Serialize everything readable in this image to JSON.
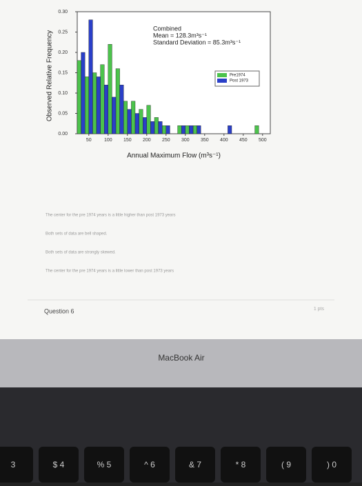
{
  "chart_data": {
    "type": "histogram",
    "annotation": [
      "Combined",
      "Mean = 128.3m³s⁻¹",
      "Standard Deviation = 85.3m³s⁻¹"
    ],
    "xlabel": "Annual Maximum Flow (m³s⁻¹)",
    "ylabel": "Observed Relative Frequency",
    "bins": [
      20,
      40,
      60,
      80,
      100,
      120,
      140,
      160,
      180,
      200,
      220,
      240,
      260,
      280,
      300,
      320,
      340,
      360,
      380,
      400,
      420,
      440,
      460,
      480,
      500,
      520
    ],
    "series": [
      {
        "name": "Pre1974",
        "color": "#4cc34c",
        "values": [
          0.18,
          0.14,
          0.15,
          0.17,
          0.22,
          0.16,
          0.08,
          0.08,
          0.06,
          0.07,
          0.04,
          0.02,
          0,
          0.02,
          0.02,
          0.02,
          0,
          0,
          0,
          0,
          0,
          0,
          0,
          0.02,
          0
        ]
      },
      {
        "name": "Post 1973",
        "color": "#2a3fc8",
        "values": [
          0.2,
          0.28,
          0.14,
          0.12,
          0.09,
          0.12,
          0.06,
          0.05,
          0.04,
          0.03,
          0.03,
          0.02,
          0,
          0.02,
          0.02,
          0.02,
          0,
          0,
          0,
          0.02,
          0,
          0,
          0,
          0,
          0
        ]
      }
    ],
    "xlim": [
      20,
      520
    ],
    "ylim": [
      0,
      0.3
    ],
    "xticks": [
      50,
      100,
      150,
      200,
      250,
      300,
      350,
      400,
      450,
      500
    ],
    "yticks": [
      {
        "value": 0,
        "label": "0.00"
      },
      {
        "value": 0.05,
        "label": "0.05"
      },
      {
        "value": 0.1,
        "label": "0.10"
      },
      {
        "value": 0.15,
        "label": "0.15"
      },
      {
        "value": 0.2,
        "label": "0.20"
      },
      {
        "value": 0.25,
        "label": "0.25"
      },
      {
        "value": 0.3,
        "label": "0.30"
      }
    ],
    "legend": "upper right"
  },
  "options": [
    "The center for the pre 1974 years is a little higher than post 1973 years",
    "Both sets of data are bell shaped.",
    "Both sets of data are strongly skewed.",
    "The center for the pre 1974 years is a little lower than post 1973 years"
  ],
  "question": {
    "title": "Question 6",
    "points": "1 pts"
  },
  "laptop": "MacBook Air",
  "keys": [
    "3",
    "$ 4",
    "% 5",
    "^ 6",
    "& 7",
    "* 8",
    "( 9",
    ") 0"
  ]
}
